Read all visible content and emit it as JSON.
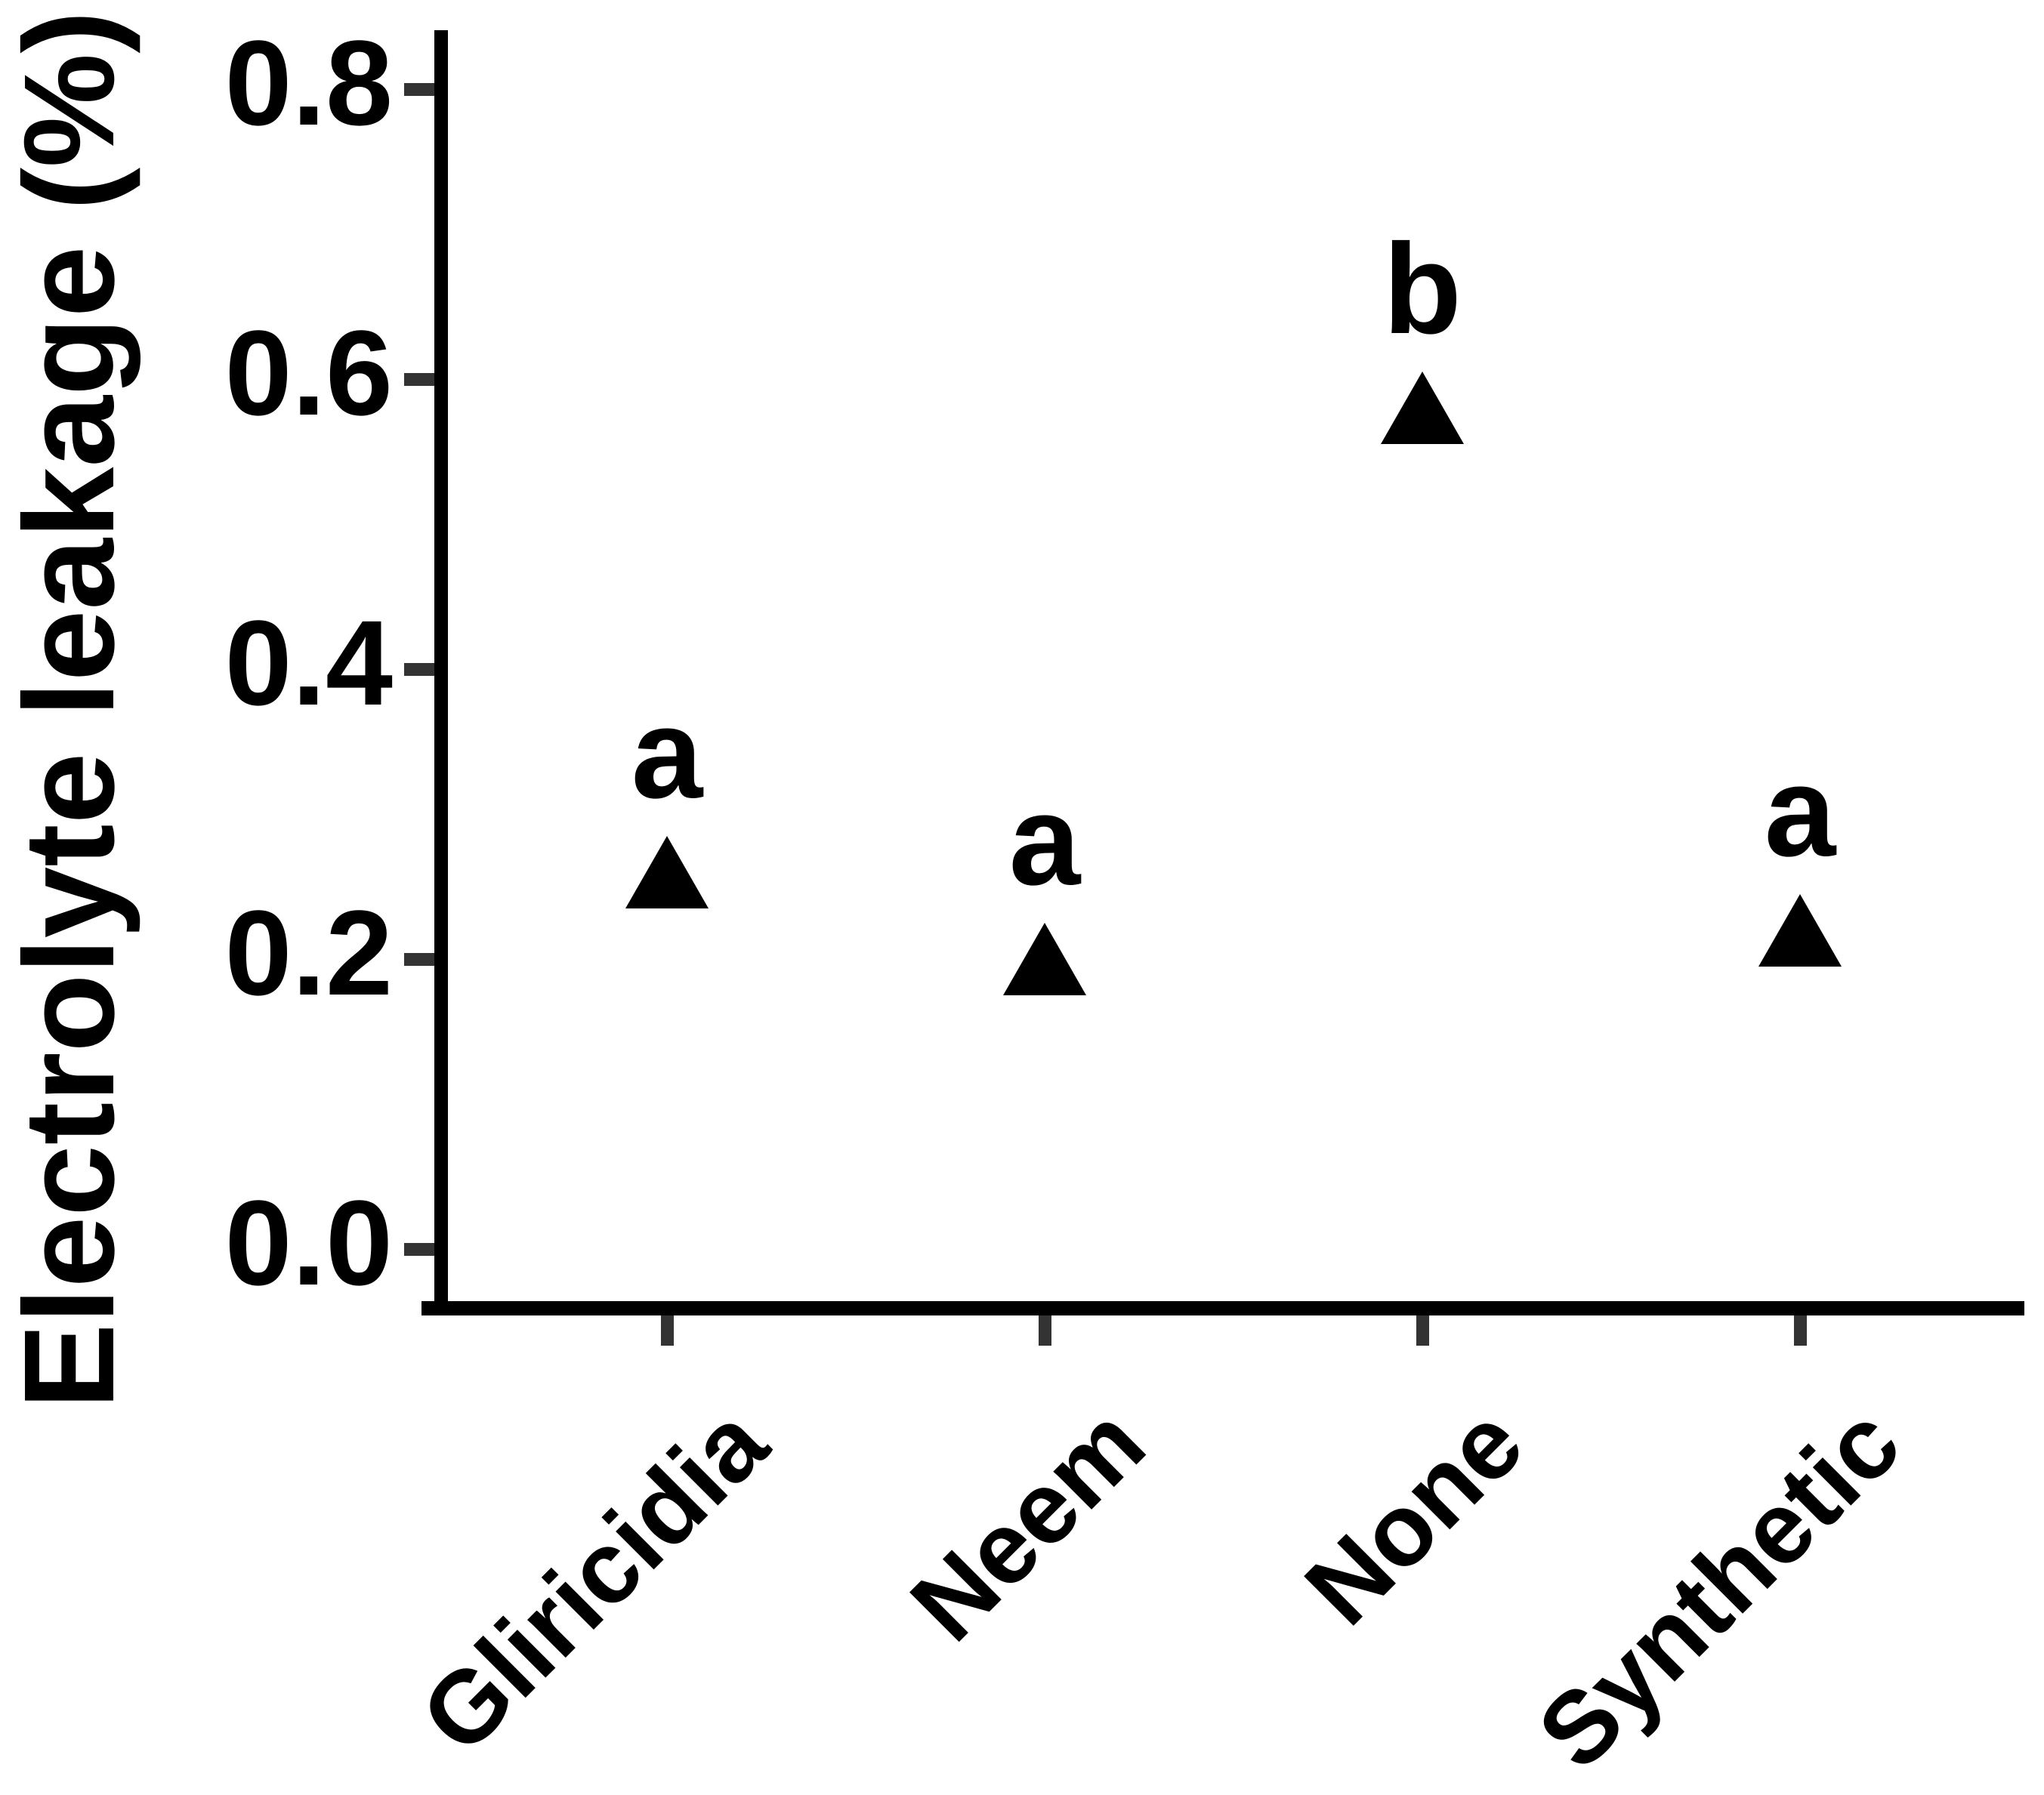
{
  "figure": {
    "background_color": "#ffffff",
    "axis_color": "#000000",
    "tick_mark_color": "#333333",
    "text_color": "#000000",
    "marker_color": "#000000"
  },
  "chart_data": {
    "type": "scatter",
    "marker": "triangle-up",
    "title": "",
    "xlabel": "",
    "ylabel": "Electrolyte leakage (%)",
    "categories": [
      "Gliricidia",
      "Neem",
      "None",
      "Synthetic"
    ],
    "series": [
      {
        "name": "Electrolyte leakage",
        "values": [
          0.26,
          0.2,
          0.58,
          0.22
        ]
      }
    ],
    "significance_letters": [
      "a",
      "a",
      "b",
      "a"
    ],
    "y_tick_labels": [
      "0.0",
      "0.2",
      "0.4",
      "0.6",
      "0.8"
    ],
    "y_tick_values": [
      0.0,
      0.2,
      0.4,
      0.6,
      0.8
    ],
    "ylim": [
      -0.045,
      0.86
    ],
    "grid": false,
    "legend": null,
    "x_tick_rotation_deg": 45
  }
}
